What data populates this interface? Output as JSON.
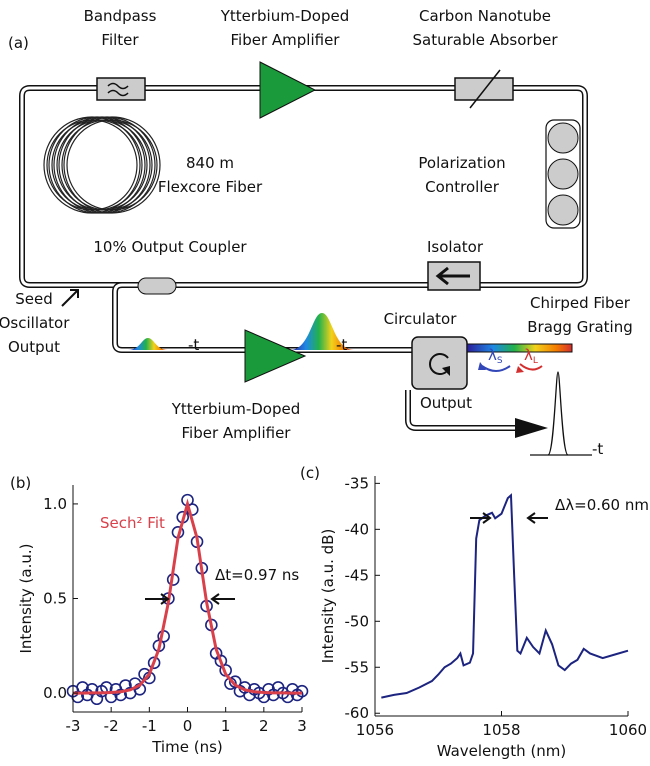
{
  "diagram": {
    "panel": "(a)",
    "bandpass_filter": [
      "Bandpass",
      "Filter"
    ],
    "amplifier_1": [
      "Ytterbium-Doped",
      "Fiber Amplifier"
    ],
    "absorber": [
      "Carbon Nanotube",
      "Saturable Absorber"
    ],
    "fiber": [
      "840 m",
      "Flexcore Fiber"
    ],
    "polarization_controller": [
      "Polarization",
      "Controller"
    ],
    "output_coupler": "10% Output Coupler",
    "isolator": "Isolator",
    "seed_output": [
      "Seed",
      "Oscillator",
      "Output"
    ],
    "grating": [
      "Chirped Fiber",
      "Bragg Grating"
    ],
    "circulator": "Circulator",
    "amplifier_2": [
      "Ytterbium-Doped",
      "Fiber Amplifier"
    ],
    "output": "Output",
    "time_labels": [
      "-t",
      "-t",
      "-t"
    ],
    "lambda_s": {
      "symbol": "λ",
      "sub": "S"
    },
    "lambda_l": {
      "symbol": "λ",
      "sub": "L"
    }
  },
  "chart_data": [
    {
      "type": "scatter",
      "panel": "(b)",
      "x_label": "Time (ns)",
      "y_label": "Intensity (a.u.)",
      "annotation": "Δt=0.97 ns",
      "xlim": [
        -3,
        3
      ],
      "xticks": [
        -3,
        -2,
        -1,
        0,
        1,
        2,
        3
      ],
      "ylim": [
        -0.1,
        1.1
      ],
      "yticks": [
        {
          "value": 0,
          "label": "0.0"
        },
        {
          "value": 0.5,
          "label": "0.5"
        },
        {
          "value": 1,
          "label": "1.0"
        }
      ],
      "series": [
        {
          "style": "markers",
          "color": "#1c2480",
          "x": [
            -3,
            -2.875,
            -2.75,
            -2.625,
            -2.5,
            -2.375,
            -2.25,
            -2.125,
            -2,
            -1.875,
            -1.75,
            -1.625,
            -1.5,
            -1.375,
            -1.25,
            -1.125,
            -1,
            -0.875,
            -0.75,
            -0.625,
            -0.5,
            -0.375,
            -0.25,
            -0.125,
            0,
            0.125,
            0.25,
            0.375,
            0.5,
            0.625,
            0.75,
            0.875,
            1,
            1.125,
            1.25,
            1.375,
            1.5,
            1.625,
            1.75,
            1.875,
            2,
            2.125,
            2.25,
            2.375,
            2.5,
            2.625,
            2.75,
            2.875,
            3
          ],
          "values": [
            0.01,
            -0.02,
            0.03,
            -0.01,
            0.02,
            -0.03,
            0.01,
            0.03,
            -0.02,
            0.02,
            -0.01,
            0.04,
            0,
            0.05,
            0.02,
            0.1,
            0.08,
            0.16,
            0.25,
            0.3,
            0.5,
            0.6,
            0.85,
            0.93,
            1.02,
            0.97,
            0.8,
            0.66,
            0.46,
            0.36,
            0.21,
            0.17,
            0.12,
            0.05,
            0.06,
            0.01,
            0.03,
            -0.01,
            0.02,
            0,
            -0.02,
            0.02,
            -0.01,
            0.03,
            0,
            -0.02,
            0.02,
            -0.01,
            0.01
          ]
        },
        {
          "style": "line",
          "name": "Sech² Fit",
          "color": "#d9404a",
          "x": [
            -3,
            -2.75,
            -2.5,
            -2.25,
            -2,
            -1.75,
            -1.5,
            -1.25,
            -1,
            -0.75,
            -0.5,
            -0.25,
            0,
            0.25,
            0.5,
            0.75,
            1,
            1.25,
            1.5,
            1.75,
            2,
            2.25,
            2.5,
            2.75,
            3
          ],
          "values": [
            0,
            0,
            0.001,
            0.001,
            0.003,
            0.007,
            0.017,
            0.042,
            0.1,
            0.232,
            0.48,
            0.819,
            1,
            0.819,
            0.48,
            0.232,
            0.1,
            0.042,
            0.017,
            0.007,
            0.003,
            0.001,
            0.001,
            0,
            0
          ]
        }
      ]
    },
    {
      "type": "line",
      "panel": "(c)",
      "x_label": "Wavelength (nm)",
      "y_label": "Intensity (a.u. dB)",
      "annotation": "Δλ=0.60 nm",
      "xlim": [
        1056,
        1060
      ],
      "xticks": [
        1056,
        1058,
        1060
      ],
      "ylim": [
        -60.3,
        -34.2
      ],
      "yticks": [
        -60,
        -55,
        -50,
        -45,
        -40,
        -35
      ],
      "series": [
        {
          "style": "line",
          "color": "#1c2480",
          "x": [
            1056.1,
            1056.3,
            1056.5,
            1056.7,
            1056.9,
            1057,
            1057.1,
            1057.2,
            1057.3,
            1057.35,
            1057.4,
            1057.5,
            1057.55,
            1057.6,
            1057.65,
            1057.75,
            1057.85,
            1057.9,
            1058,
            1058.1,
            1058.15,
            1058.2,
            1058.25,
            1058.3,
            1058.4,
            1058.5,
            1058.6,
            1058.7,
            1058.8,
            1058.9,
            1059,
            1059.1,
            1059.2,
            1059.3,
            1059.4,
            1059.6,
            1059.8,
            1060
          ],
          "values": [
            -58.3,
            -58,
            -57.8,
            -57.2,
            -56.5,
            -55.8,
            -55,
            -54.6,
            -54,
            -53.5,
            -54.8,
            -54.5,
            -53.5,
            -41,
            -39,
            -38.5,
            -38.2,
            -38.8,
            -38.3,
            -36.6,
            -36.3,
            -45,
            -53.2,
            -53.5,
            -51.8,
            -52.8,
            -53.5,
            -51,
            -52.5,
            -54.8,
            -55.3,
            -54.6,
            -54.2,
            -53,
            -53.5,
            -54,
            -53.6,
            -53.2
          ]
        }
      ]
    }
  ]
}
